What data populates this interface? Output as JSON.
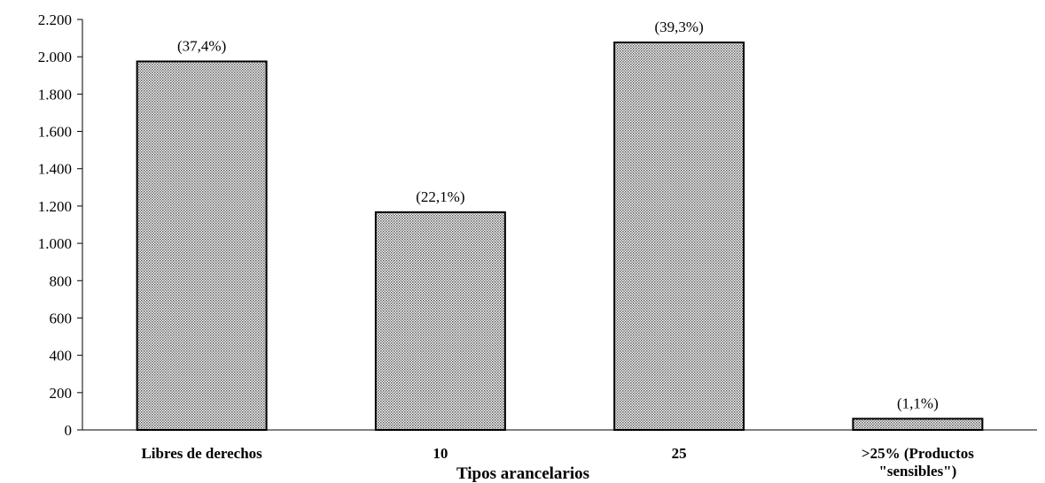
{
  "chart_data": {
    "type": "bar",
    "categories": [
      [
        "Libres de derechos"
      ],
      [
        "10"
      ],
      [
        "25"
      ],
      [
        ">25% (Productos",
        "\"sensibles\")"
      ]
    ],
    "values": [
      1975,
      1167,
      2077,
      60
    ],
    "data_labels": [
      "(37,4%)",
      "(22,1%)",
      "(39,3%)",
      "(1,1%)"
    ],
    "title": "",
    "xlabel": "Tipos arancelarios",
    "ylabel": "",
    "ylim": [
      0,
      2200
    ],
    "yticks": [
      0,
      200,
      400,
      600,
      800,
      1000,
      1200,
      1400,
      1600,
      1800,
      2000,
      2200
    ],
    "ytick_labels": [
      "0",
      "200",
      "400",
      "600",
      "800",
      "1.000",
      "1.200",
      "1.400",
      "1.600",
      "1.800",
      "2.000",
      "2.200"
    ],
    "grid": false,
    "legend": "none",
    "bar_fill": "#d9d9d9",
    "bar_stroke": "#000000"
  }
}
